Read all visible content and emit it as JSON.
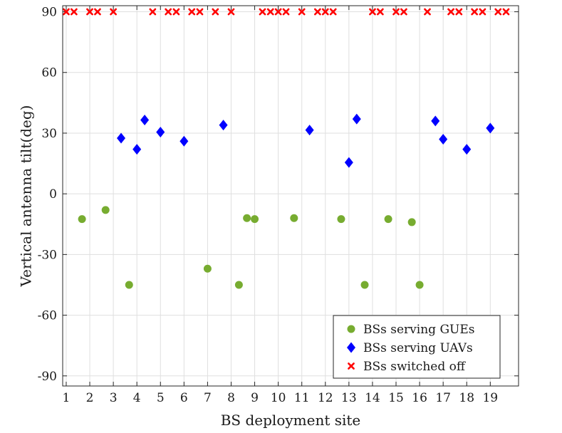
{
  "chart_data": {
    "type": "scatter",
    "title": "",
    "xlabel": "BS deployment site",
    "ylabel": "Vertical antenna tilt(deg)",
    "xlim": [
      0.85,
      20.2
    ],
    "ylim": [
      -95,
      93
    ],
    "xticks": [
      1,
      2,
      3,
      4,
      5,
      6,
      7,
      8,
      9,
      10,
      11,
      12,
      13,
      14,
      15,
      16,
      17,
      18,
      19
    ],
    "yticks": [
      -90,
      -60,
      -30,
      0,
      30,
      60,
      90
    ],
    "grid": true,
    "legend_position": "bottom-right",
    "series": [
      {
        "name": "BSs serving GUEs",
        "marker": "circle",
        "color": "#77AC30",
        "points": [
          {
            "x": 1.67,
            "y": -12.5
          },
          {
            "x": 2.67,
            "y": -8
          },
          {
            "x": 3.67,
            "y": -45
          },
          {
            "x": 7.0,
            "y": -37
          },
          {
            "x": 8.33,
            "y": -45
          },
          {
            "x": 8.67,
            "y": -12
          },
          {
            "x": 9.0,
            "y": -12.5
          },
          {
            "x": 10.67,
            "y": -12
          },
          {
            "x": 12.67,
            "y": -12.5
          },
          {
            "x": 13.67,
            "y": -45
          },
          {
            "x": 14.67,
            "y": -12.5
          },
          {
            "x": 15.67,
            "y": -14
          },
          {
            "x": 16.0,
            "y": -45
          }
        ]
      },
      {
        "name": "BSs serving UAVs",
        "marker": "diamond",
        "color": "#0000FF",
        "points": [
          {
            "x": 3.33,
            "y": 27.5
          },
          {
            "x": 4.0,
            "y": 22
          },
          {
            "x": 4.33,
            "y": 36.5
          },
          {
            "x": 5.0,
            "y": 30.5
          },
          {
            "x": 6.0,
            "y": 26
          },
          {
            "x": 7.67,
            "y": 34
          },
          {
            "x": 11.33,
            "y": 31.5
          },
          {
            "x": 13.0,
            "y": 15.5
          },
          {
            "x": 13.33,
            "y": 37
          },
          {
            "x": 16.67,
            "y": 36
          },
          {
            "x": 17.0,
            "y": 27
          },
          {
            "x": 18.0,
            "y": 22
          },
          {
            "x": 19.0,
            "y": 32.5
          }
        ]
      },
      {
        "name": "BSs switched off",
        "marker": "x",
        "color": "#FF0000",
        "points": [
          {
            "x": 1.0,
            "y": 90
          },
          {
            "x": 1.33,
            "y": 90
          },
          {
            "x": 2.0,
            "y": 90
          },
          {
            "x": 2.33,
            "y": 90
          },
          {
            "x": 3.0,
            "y": 90
          },
          {
            "x": 4.67,
            "y": 90
          },
          {
            "x": 5.33,
            "y": 90
          },
          {
            "x": 5.67,
            "y": 90
          },
          {
            "x": 6.33,
            "y": 90
          },
          {
            "x": 6.67,
            "y": 90
          },
          {
            "x": 7.33,
            "y": 90
          },
          {
            "x": 8.0,
            "y": 90
          },
          {
            "x": 9.33,
            "y": 90
          },
          {
            "x": 9.67,
            "y": 90
          },
          {
            "x": 10.0,
            "y": 90
          },
          {
            "x": 10.33,
            "y": 90
          },
          {
            "x": 11.0,
            "y": 90
          },
          {
            "x": 11.67,
            "y": 90
          },
          {
            "x": 12.0,
            "y": 90
          },
          {
            "x": 12.33,
            "y": 90
          },
          {
            "x": 14.0,
            "y": 90
          },
          {
            "x": 14.33,
            "y": 90
          },
          {
            "x": 15.0,
            "y": 90
          },
          {
            "x": 15.33,
            "y": 90
          },
          {
            "x": 16.33,
            "y": 90
          },
          {
            "x": 17.33,
            "y": 90
          },
          {
            "x": 17.67,
            "y": 90
          },
          {
            "x": 18.33,
            "y": 90
          },
          {
            "x": 18.67,
            "y": 90
          },
          {
            "x": 19.33,
            "y": 90
          },
          {
            "x": 19.67,
            "y": 90
          }
        ]
      }
    ]
  }
}
